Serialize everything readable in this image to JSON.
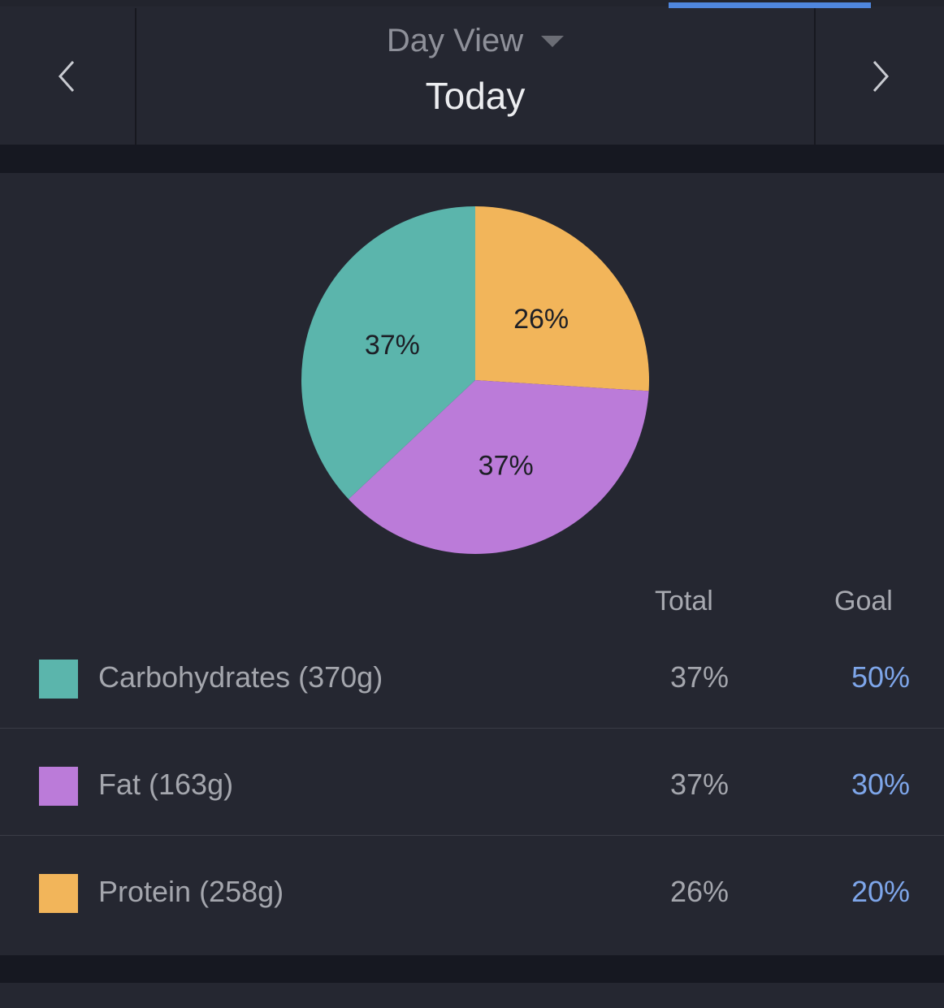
{
  "header": {
    "view_label": "Day View",
    "date_label": "Today",
    "prev_icon": "chevron-left-icon",
    "next_icon": "chevron-right-icon",
    "dropdown_icon": "triangle-down-icon",
    "accent": "#4f86dd"
  },
  "chart_data": {
    "type": "pie",
    "slices": [
      {
        "label": "Protein",
        "value": 26,
        "display": "26%",
        "color": "#f2b55a"
      },
      {
        "label": "Fat",
        "value": 37,
        "display": "37%",
        "color": "#bb7bd9"
      },
      {
        "label": "Carbohydrates",
        "value": 37,
        "display": "37%",
        "color": "#5bb5ac"
      }
    ]
  },
  "table": {
    "headers": {
      "total": "Total",
      "goal": "Goal"
    },
    "rows": [
      {
        "label": "Carbohydrates (370g)",
        "total": "37%",
        "goal": "50%",
        "color": "#5bb5ac"
      },
      {
        "label": "Fat (163g)",
        "total": "37%",
        "goal": "30%",
        "color": "#bb7bd9"
      },
      {
        "label": "Protein (258g)",
        "total": "26%",
        "goal": "20%",
        "color": "#f2b55a"
      }
    ]
  }
}
